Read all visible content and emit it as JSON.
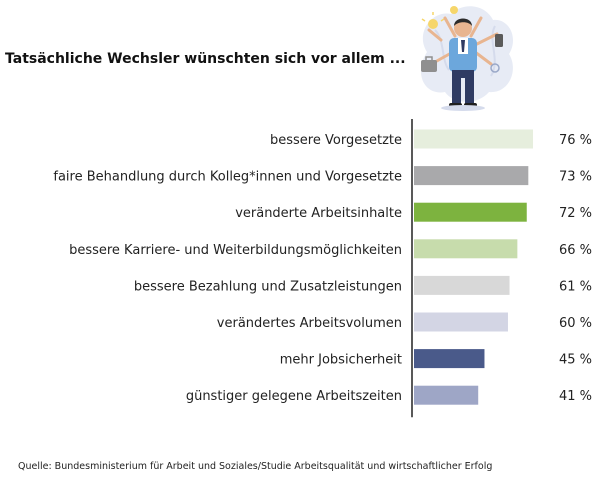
{
  "headline": "Tatsächliche Wechsler wünschten sich vor allem ...",
  "source": "Quelle: Bundesministerium für Arbeit und Soziales/Studie Arbeitsqualität und wirtschaftlicher Erfolg",
  "illustration_icon": "multitasking-worker-icon",
  "chart_data": {
    "type": "bar",
    "orientation": "horizontal",
    "title": "",
    "xlabel": "",
    "ylabel": "",
    "value_suffix": " %",
    "xlim": [
      0,
      100
    ],
    "grid": false,
    "categories": [
      "bessere Vorgesetzte",
      "faire Behandlung durch Kolleg*innen und Vorgesetzte",
      "veränderte Arbeitsinhalte",
      "bessere Karriere- und Weiterbildungsmöglichkeiten",
      "bessere Bezahlung und Zusatzleistungen",
      "verändertes Arbeitsvolumen",
      "mehr Jobsicherheit",
      "günstiger gelegene Arbeitszeiten"
    ],
    "values": [
      76,
      73,
      72,
      66,
      61,
      60,
      45,
      41
    ],
    "value_labels": [
      "76 %",
      "73 %",
      "72 %",
      "66 %",
      "61 %",
      "60 %",
      "45 %",
      "41 %"
    ],
    "colors": [
      "#e6eedd",
      "#a9a9ab",
      "#7db33f",
      "#c7dcac",
      "#d8d8d8",
      "#d3d5e4",
      "#4a5a8a",
      "#9ea6c6"
    ],
    "axis_color": "#222222"
  }
}
